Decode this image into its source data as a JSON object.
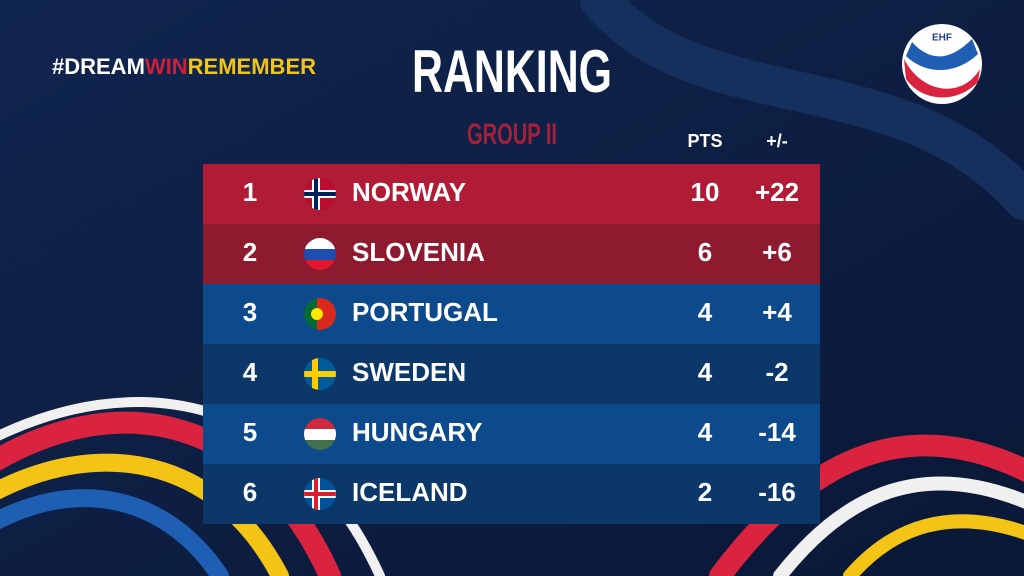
{
  "header": {
    "hashtag": [
      "#DREAM",
      "WIN",
      "REMEMBER"
    ],
    "logo": "EHF",
    "title": "RANKING",
    "subtitle": "GROUP II"
  },
  "table": {
    "columns": [
      "PTS",
      "+/-"
    ],
    "rows": [
      [
        1,
        "NORWAY",
        10,
        "+22"
      ],
      [
        2,
        "SLOVENIA",
        6,
        "+6"
      ],
      [
        3,
        "PORTUGAL",
        4,
        "+4"
      ],
      [
        4,
        "SWEDEN",
        4,
        "-2"
      ],
      [
        5,
        "HUNGARY",
        4,
        "-14"
      ],
      [
        6,
        "ICELAND",
        2,
        "-16"
      ]
    ]
  }
}
